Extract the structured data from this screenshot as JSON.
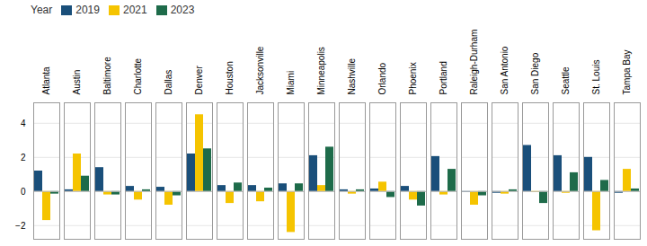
{
  "chart_data": {
    "type": "bar",
    "categories": [
      "Atlanta",
      "Austin",
      "Baltimore",
      "Charlotte",
      "Dallas",
      "Denver",
      "Houston",
      "Jacksonville",
      "Miami",
      "Minneapolis",
      "Nashville",
      "Orlando",
      "Phoenix",
      "Portland",
      "Raleigh-Durham",
      "San Antonio",
      "San Diego",
      "Seattle",
      "St. Louis",
      "Tampa Bay"
    ],
    "series": [
      {
        "name": "2019",
        "color": "#1a4f7a",
        "values": [
          1.2,
          0.1,
          1.4,
          0.3,
          0.25,
          2.2,
          0.35,
          0.35,
          0.45,
          2.1,
          0.1,
          0.15,
          0.3,
          2.05,
          -0.05,
          -0.1,
          2.7,
          2.1,
          2.0,
          -0.1
        ]
      },
      {
        "name": "2021",
        "color": "#f5c400",
        "values": [
          -1.7,
          2.2,
          -0.2,
          -0.5,
          -0.8,
          4.5,
          -0.7,
          -0.6,
          -2.4,
          0.35,
          -0.15,
          0.55,
          -0.5,
          -0.2,
          -0.8,
          -0.15,
          -0.05,
          -0.1,
          -2.3,
          1.3
        ]
      },
      {
        "name": "2023",
        "color": "#1e6b4a",
        "values": [
          -0.15,
          0.9,
          -0.2,
          0.1,
          -0.25,
          2.5,
          0.5,
          0.2,
          0.45,
          2.6,
          0.1,
          -0.35,
          -0.85,
          1.3,
          -0.25,
          0.1,
          -0.7,
          1.1,
          0.65,
          0.15
        ]
      }
    ],
    "ylim": [
      -2.8,
      5.2
    ],
    "yticks": [
      -2,
      0,
      2,
      4
    ],
    "grid": true,
    "legend": "upper left",
    "legend_title": "Year"
  }
}
